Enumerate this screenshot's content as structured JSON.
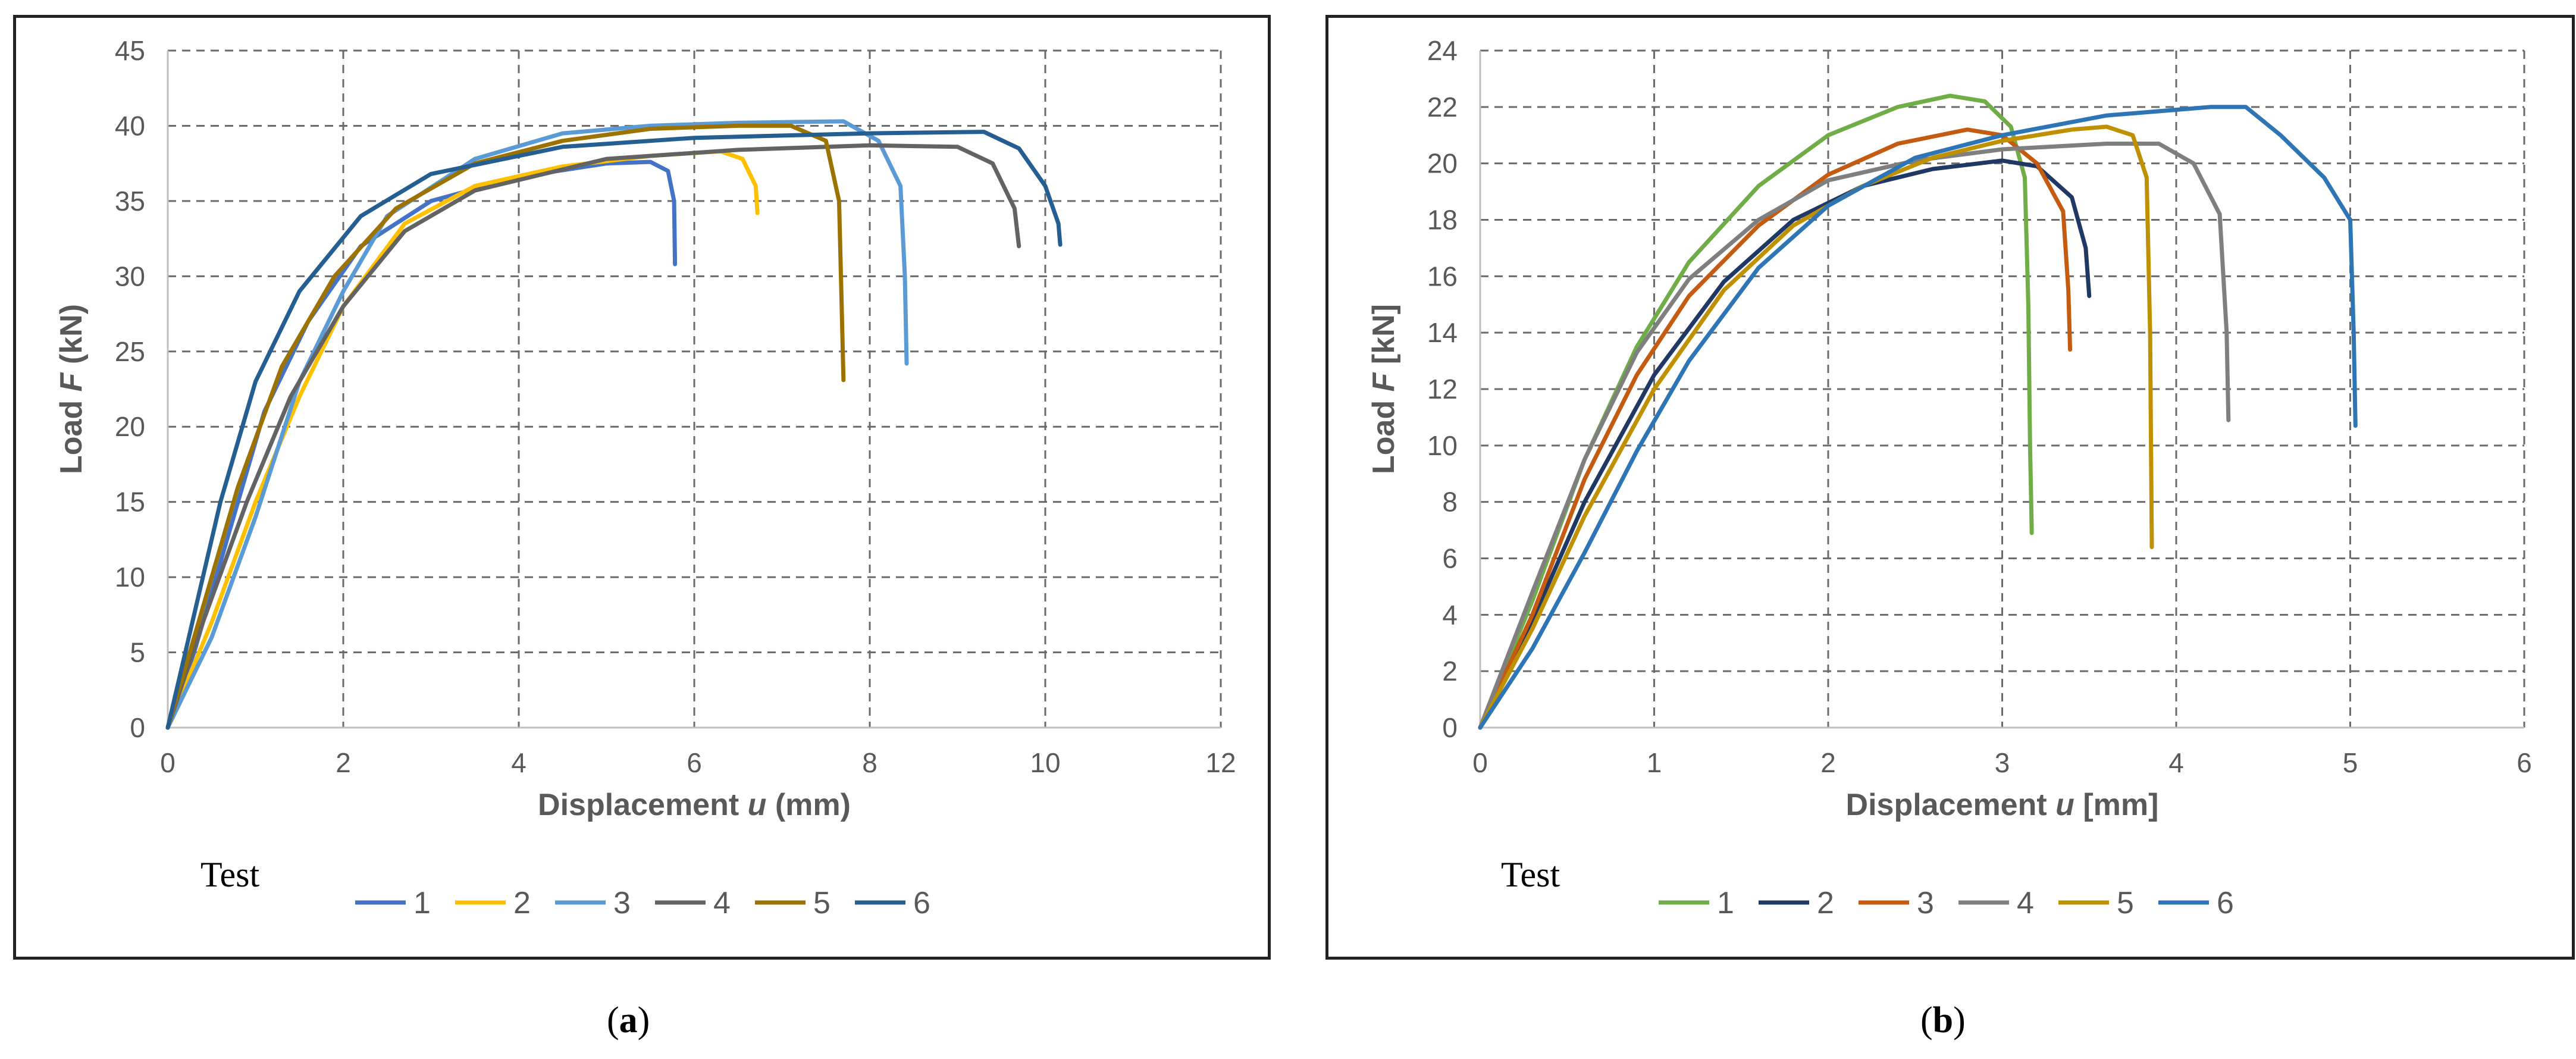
{
  "chart_data": [
    {
      "type": "line",
      "panel": "a",
      "caption": "a",
      "xlabel_prefix": "Displacement ",
      "xlabel_var": "u",
      "xlabel_suffix": " (mm)",
      "ylabel_prefix": "Load ",
      "ylabel_var": "F",
      "ylabel_suffix": " (kN)",
      "xlim": [
        0,
        12
      ],
      "ylim": [
        0,
        45
      ],
      "xticks": [
        0,
        2,
        4,
        6,
        8,
        10,
        12
      ],
      "yticks": [
        0,
        5,
        10,
        15,
        20,
        25,
        30,
        35,
        40,
        45
      ],
      "grid": true,
      "legend_title": "Test",
      "legend_position": "bottom",
      "series": [
        {
          "name": "1",
          "color": "#4472C4",
          "points": [
            [
              0,
              0
            ],
            [
              0.3,
              5
            ],
            [
              0.7,
              13
            ],
            [
              1.1,
              21
            ],
            [
              1.6,
              27
            ],
            [
              2.2,
              32
            ],
            [
              3,
              35
            ],
            [
              4,
              36.6
            ],
            [
              5,
              37.5
            ],
            [
              5.5,
              37.6
            ],
            [
              5.7,
              37
            ],
            [
              5.77,
              35
            ],
            [
              5.78,
              30.8
            ]
          ]
        },
        {
          "name": "2",
          "color": "#FFC000",
          "points": [
            [
              0,
              0
            ],
            [
              0.5,
              7
            ],
            [
              1,
              15
            ],
            [
              1.5,
              22
            ],
            [
              2,
              28
            ],
            [
              2.7,
              33.5
            ],
            [
              3.5,
              36
            ],
            [
              4.5,
              37.3
            ],
            [
              5.5,
              38
            ],
            [
              6.3,
              38.3
            ],
            [
              6.55,
              37.8
            ],
            [
              6.7,
              36
            ],
            [
              6.72,
              34.2
            ]
          ]
        },
        {
          "name": "3",
          "color": "#5B9BD5",
          "points": [
            [
              0,
              0
            ],
            [
              0.5,
              6
            ],
            [
              1,
              14
            ],
            [
              1.5,
              23
            ],
            [
              2,
              29
            ],
            [
              2.5,
              34
            ],
            [
              3.5,
              37.8
            ],
            [
              4.5,
              39.5
            ],
            [
              5.5,
              40
            ],
            [
              6.5,
              40.2
            ],
            [
              7.7,
              40.3
            ],
            [
              8.1,
              39
            ],
            [
              8.35,
              36
            ],
            [
              8.4,
              30
            ],
            [
              8.42,
              24.2
            ]
          ]
        },
        {
          "name": "4",
          "color": "#636363",
          "points": [
            [
              0,
              0
            ],
            [
              0.4,
              7
            ],
            [
              0.9,
              15
            ],
            [
              1.4,
              22
            ],
            [
              2,
              28
            ],
            [
              2.7,
              33
            ],
            [
              3.5,
              35.7
            ],
            [
              5,
              37.8
            ],
            [
              6.5,
              38.4
            ],
            [
              8,
              38.7
            ],
            [
              9,
              38.6
            ],
            [
              9.4,
              37.5
            ],
            [
              9.65,
              34.5
            ],
            [
              9.7,
              32
            ]
          ]
        },
        {
          "name": "5",
          "color": "#9C7300",
          "points": [
            [
              0,
              0
            ],
            [
              0.3,
              6
            ],
            [
              0.8,
              16
            ],
            [
              1.3,
              24
            ],
            [
              1.9,
              30
            ],
            [
              2.6,
              34.5
            ],
            [
              3.5,
              37.5
            ],
            [
              4.5,
              39
            ],
            [
              5.5,
              39.8
            ],
            [
              6.5,
              40
            ],
            [
              7.1,
              40
            ],
            [
              7.5,
              39
            ],
            [
              7.65,
              35
            ],
            [
              7.68,
              28
            ],
            [
              7.7,
              23.1
            ]
          ]
        },
        {
          "name": "6",
          "color": "#255E91",
          "points": [
            [
              0,
              0
            ],
            [
              0.2,
              5
            ],
            [
              0.6,
              15
            ],
            [
              1,
              23
            ],
            [
              1.5,
              29
            ],
            [
              2.2,
              34
            ],
            [
              3,
              36.8
            ],
            [
              4.5,
              38.6
            ],
            [
              6,
              39.2
            ],
            [
              8,
              39.5
            ],
            [
              9.3,
              39.6
            ],
            [
              9.7,
              38.5
            ],
            [
              10,
              36
            ],
            [
              10.15,
              33.5
            ],
            [
              10.17,
              32.1
            ]
          ]
        }
      ]
    },
    {
      "type": "line",
      "panel": "b",
      "caption": "b",
      "xlabel_prefix": "Displacement ",
      "xlabel_var": "u",
      "xlabel_suffix": " [mm]",
      "ylabel_prefix": "Load ",
      "ylabel_var": "F",
      "ylabel_suffix": " [kN]",
      "xlim": [
        0,
        6
      ],
      "ylim": [
        0,
        24
      ],
      "xticks": [
        0,
        1,
        2,
        3,
        4,
        5,
        6
      ],
      "yticks": [
        0,
        2,
        4,
        6,
        8,
        10,
        12,
        14,
        16,
        18,
        20,
        22,
        24
      ],
      "grid": true,
      "legend_title": "Test",
      "legend_position": "bottom",
      "series": [
        {
          "name": "1",
          "color": "#70AD47",
          "points": [
            [
              0,
              0
            ],
            [
              0.3,
              4.5
            ],
            [
              0.6,
              9.5
            ],
            [
              0.9,
              13.5
            ],
            [
              1.2,
              16.5
            ],
            [
              1.6,
              19.2
            ],
            [
              2,
              21
            ],
            [
              2.4,
              22
            ],
            [
              2.7,
              22.4
            ],
            [
              2.9,
              22.2
            ],
            [
              3.05,
              21.3
            ],
            [
              3.13,
              19.5
            ],
            [
              3.15,
              15
            ],
            [
              3.16,
              10
            ],
            [
              3.17,
              6.9
            ]
          ]
        },
        {
          "name": "2",
          "color": "#203864",
          "points": [
            [
              0,
              0
            ],
            [
              0.3,
              3.8
            ],
            [
              0.6,
              8
            ],
            [
              1,
              12.5
            ],
            [
              1.4,
              15.8
            ],
            [
              1.8,
              18
            ],
            [
              2.2,
              19.2
            ],
            [
              2.6,
              19.8
            ],
            [
              3,
              20.1
            ],
            [
              3.2,
              19.9
            ],
            [
              3.4,
              18.8
            ],
            [
              3.48,
              17
            ],
            [
              3.5,
              15.3
            ]
          ]
        },
        {
          "name": "3",
          "color": "#C55A11",
          "points": [
            [
              0,
              0
            ],
            [
              0.3,
              4
            ],
            [
              0.6,
              8.8
            ],
            [
              0.9,
              12.5
            ],
            [
              1.2,
              15.3
            ],
            [
              1.6,
              17.8
            ],
            [
              2,
              19.6
            ],
            [
              2.4,
              20.7
            ],
            [
              2.8,
              21.2
            ],
            [
              3,
              21
            ],
            [
              3.2,
              20
            ],
            [
              3.35,
              18.3
            ],
            [
              3.38,
              15.5
            ],
            [
              3.39,
              13.4
            ]
          ]
        },
        {
          "name": "4",
          "color": "#7F7F7F",
          "points": [
            [
              0,
              0
            ],
            [
              0.3,
              4.8
            ],
            [
              0.6,
              9.5
            ],
            [
              0.9,
              13.3
            ],
            [
              1.2,
              15.9
            ],
            [
              1.6,
              18
            ],
            [
              2,
              19.4
            ],
            [
              2.5,
              20.1
            ],
            [
              3,
              20.5
            ],
            [
              3.6,
              20.7
            ],
            [
              3.9,
              20.7
            ],
            [
              4.1,
              20
            ],
            [
              4.25,
              18.2
            ],
            [
              4.29,
              14
            ],
            [
              4.3,
              10.9
            ]
          ]
        },
        {
          "name": "5",
          "color": "#BF9000",
          "points": [
            [
              0,
              0
            ],
            [
              0.3,
              3.5
            ],
            [
              0.6,
              7.5
            ],
            [
              1,
              12
            ],
            [
              1.4,
              15.5
            ],
            [
              1.8,
              17.8
            ],
            [
              2.2,
              19.2
            ],
            [
              2.6,
              20.2
            ],
            [
              3,
              20.8
            ],
            [
              3.4,
              21.2
            ],
            [
              3.6,
              21.3
            ],
            [
              3.75,
              21
            ],
            [
              3.83,
              19.5
            ],
            [
              3.85,
              14
            ],
            [
              3.86,
              6.4
            ]
          ]
        },
        {
          "name": "6",
          "color": "#2E75B6",
          "points": [
            [
              0,
              0
            ],
            [
              0.3,
              2.8
            ],
            [
              0.6,
              6.2
            ],
            [
              0.9,
              9.8
            ],
            [
              1.2,
              13
            ],
            [
              1.6,
              16.3
            ],
            [
              2,
              18.5
            ],
            [
              2.5,
              20.2
            ],
            [
              3,
              21
            ],
            [
              3.6,
              21.7
            ],
            [
              4.2,
              22
            ],
            [
              4.4,
              22
            ],
            [
              4.6,
              21
            ],
            [
              4.85,
              19.5
            ],
            [
              5,
              18
            ],
            [
              5.02,
              14
            ],
            [
              5.03,
              10.7
            ]
          ]
        }
      ]
    }
  ]
}
